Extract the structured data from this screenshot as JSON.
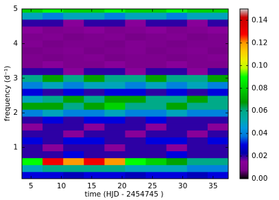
{
  "chart_data": {
    "type": "heatmap",
    "xlabel": "time (HJD - 2454745 )",
    "ylabel": "frequency (d⁻¹)",
    "x": [
      5.2,
      8.6,
      12,
      15.4,
      18.8,
      22.2,
      25.6,
      29,
      32.4,
      35.8
    ],
    "y": [
      0.2,
      0.4,
      0.6,
      0.8,
      1.0,
      1.2,
      1.4,
      1.6,
      1.8,
      2.0,
      2.2,
      2.4,
      2.6,
      2.8,
      3.0,
      3.2,
      3.4,
      3.6,
      3.8,
      4.0,
      4.2,
      4.4,
      4.6,
      4.8,
      5.0
    ],
    "z": [
      [
        0.03,
        0.03,
        0.025,
        0.03,
        0.03,
        0.025,
        0.03,
        0.03,
        0.025,
        0.03
      ],
      [
        0.05,
        0.06,
        0.06,
        0.06,
        0.06,
        0.05,
        0.05,
        0.05,
        0.04,
        0.04
      ],
      [
        0.09,
        0.13,
        0.12,
        0.13,
        0.12,
        0.09,
        0.08,
        0.07,
        0.06,
        0.06
      ],
      [
        0.02,
        0.02,
        0.03,
        0.02,
        0.02,
        0.02,
        0.02,
        0.03,
        0.02,
        0.02
      ],
      [
        0.02,
        0.015,
        0.02,
        0.02,
        0.015,
        0.02,
        0.02,
        0.015,
        0.02,
        0.02
      ],
      [
        0.03,
        0.02,
        0.03,
        0.03,
        0.02,
        0.02,
        0.03,
        0.03,
        0.02,
        0.03
      ],
      [
        0.02,
        0.02,
        0.015,
        0.02,
        0.02,
        0.015,
        0.02,
        0.02,
        0.015,
        0.02
      ],
      [
        0.015,
        0.02,
        0.02,
        0.015,
        0.02,
        0.02,
        0.015,
        0.02,
        0.02,
        0.015
      ],
      [
        0.02,
        0.03,
        0.02,
        0.03,
        0.03,
        0.02,
        0.03,
        0.02,
        0.02,
        0.02
      ],
      [
        0.04,
        0.05,
        0.04,
        0.04,
        0.05,
        0.04,
        0.04,
        0.05,
        0.04,
        0.04
      ],
      [
        0.07,
        0.07,
        0.06,
        0.07,
        0.08,
        0.06,
        0.06,
        0.07,
        0.06,
        0.06
      ],
      [
        0.05,
        0.06,
        0.07,
        0.06,
        0.07,
        0.07,
        0.06,
        0.06,
        0.07,
        0.06
      ],
      [
        0.03,
        0.02,
        0.03,
        0.02,
        0.03,
        0.03,
        0.02,
        0.03,
        0.02,
        0.03
      ],
      [
        0.04,
        0.05,
        0.04,
        0.05,
        0.05,
        0.04,
        0.05,
        0.04,
        0.05,
        0.04
      ],
      [
        0.06,
        0.07,
        0.06,
        0.07,
        0.06,
        0.06,
        0.07,
        0.06,
        0.06,
        0.07
      ],
      [
        0.02,
        0.02,
        0.015,
        0.02,
        0.02,
        0.015,
        0.02,
        0.02,
        0.015,
        0.02
      ],
      [
        0.01,
        0.015,
        0.01,
        0.01,
        0.015,
        0.01,
        0.01,
        0.015,
        0.01,
        0.01
      ],
      [
        0.01,
        0.008,
        0.01,
        0.012,
        0.008,
        0.01,
        0.01,
        0.008,
        0.01,
        0.012
      ],
      [
        0.008,
        0.01,
        0.012,
        0.008,
        0.01,
        0.012,
        0.008,
        0.01,
        0.012,
        0.008
      ],
      [
        0.012,
        0.008,
        0.01,
        0.01,
        0.008,
        0.012,
        0.01,
        0.008,
        0.01,
        0.01
      ],
      [
        0.01,
        0.012,
        0.008,
        0.01,
        0.012,
        0.008,
        0.01,
        0.012,
        0.008,
        0.01
      ],
      [
        0.015,
        0.01,
        0.012,
        0.015,
        0.01,
        0.012,
        0.015,
        0.01,
        0.012,
        0.015
      ],
      [
        0.02,
        0.02,
        0.015,
        0.02,
        0.02,
        0.015,
        0.02,
        0.02,
        0.015,
        0.02
      ],
      [
        0.05,
        0.04,
        0.05,
        0.05,
        0.04,
        0.05,
        0.05,
        0.04,
        0.05,
        0.05
      ],
      [
        0.08,
        0.09,
        0.08,
        0.08,
        0.09,
        0.08,
        0.08,
        0.09,
        0.08,
        0.08
      ]
    ],
    "colormap": "nipy_spectral",
    "xlim": [
      3.5,
      37.5
    ],
    "xticks": [
      5,
      10,
      15,
      20,
      25,
      30,
      35
    ],
    "ylim": [
      0.1,
      5
    ],
    "yticks": [
      1,
      2,
      3,
      4,
      5
    ],
    "zlim": [
      0,
      0.15
    ],
    "zticks": [
      {
        "value": 0,
        "label": "0.00"
      },
      {
        "value": 0.02,
        "label": "0.02"
      },
      {
        "value": 0.04,
        "label": "0.04"
      },
      {
        "value": 0.06,
        "label": "0.06"
      },
      {
        "value": 0.08,
        "label": "0.08"
      },
      {
        "value": 0.1,
        "label": "0.10"
      },
      {
        "value": 0.12,
        "label": "0.12"
      },
      {
        "value": 0.14,
        "label": "0.14"
      }
    ]
  }
}
